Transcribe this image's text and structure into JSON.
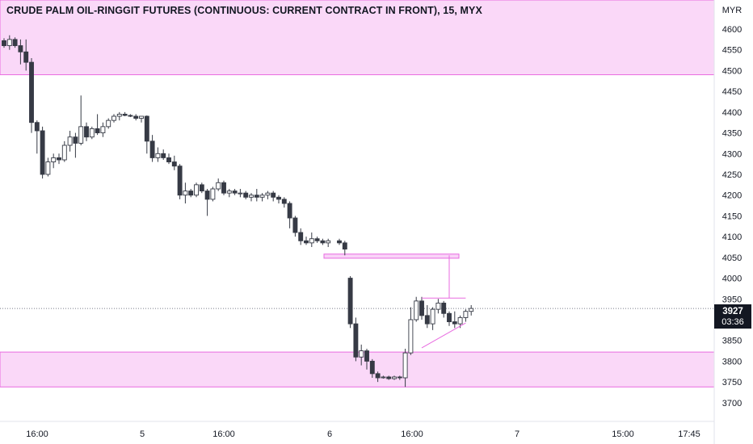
{
  "title": "CRUDE PALM OIL-RINGGIT FUTURES (CONTINUOUS: CURRENT CONTRACT IN FRONT), 15, MYX",
  "current_price": {
    "price": "3927",
    "countdown": "03:36"
  },
  "colors": {
    "up": "#ffffff",
    "down": "#363a45",
    "wick": "#363a45",
    "zone": "#f5b8f2",
    "line": "#e86be0",
    "grid": "#f0f3fa"
  },
  "chart_data": {
    "type": "candlestick",
    "y_axis_unit": "MYR",
    "ylim": [
      3655,
      4670
    ],
    "y_ticks": [
      3700,
      3750,
      3800,
      3850,
      3900,
      3950,
      4000,
      4050,
      4100,
      4150,
      4200,
      4250,
      4300,
      4350,
      4400,
      4450,
      4500,
      4550,
      4600
    ],
    "x_ticks": [
      "16:00",
      "5",
      "16:00",
      "6",
      "16:00",
      "7",
      "15:00",
      "17:45"
    ],
    "current_price": 3927,
    "zones": [
      {
        "name": "resistance-zone",
        "from": 4490,
        "to": 4670,
        "extends_right": true
      },
      {
        "name": "small-zone",
        "from": 4048,
        "to": 4058
      },
      {
        "name": "support-zone",
        "from": 3738,
        "to": 3822,
        "extends_right": true
      }
    ],
    "candles": [
      [
        4572,
        4578,
        4555,
        4560
      ],
      [
        4560,
        4585,
        4550,
        4575
      ],
      [
        4575,
        4580,
        4555,
        4560
      ],
      [
        4560,
        4575,
        4515,
        4545
      ],
      [
        4545,
        4575,
        4500,
        4520
      ],
      [
        4520,
        4530,
        4350,
        4375
      ],
      [
        4375,
        4380,
        4300,
        4355
      ],
      [
        4355,
        4365,
        4240,
        4250
      ],
      [
        4250,
        4290,
        4245,
        4280
      ],
      [
        4280,
        4300,
        4265,
        4290
      ],
      [
        4290,
        4300,
        4275,
        4285
      ],
      [
        4285,
        4330,
        4280,
        4320
      ],
      [
        4320,
        4355,
        4305,
        4340
      ],
      [
        4340,
        4350,
        4290,
        4325
      ],
      [
        4325,
        4440,
        4320,
        4365
      ],
      [
        4365,
        4375,
        4330,
        4340
      ],
      [
        4340,
        4365,
        4335,
        4360
      ],
      [
        4360,
        4395,
        4345,
        4350
      ],
      [
        4350,
        4375,
        4340,
        4365
      ],
      [
        4365,
        4385,
        4360,
        4380
      ],
      [
        4380,
        4395,
        4375,
        4390
      ],
      [
        4390,
        4400,
        4380,
        4395
      ],
      [
        4395,
        4400,
        4390,
        4392
      ],
      [
        4392,
        4395,
        4388,
        4390
      ],
      [
        4390,
        4395,
        4380,
        4385
      ],
      [
        4385,
        4390,
        4375,
        4390
      ],
      [
        4390,
        4392,
        4300,
        4330
      ],
      [
        4330,
        4345,
        4280,
        4290
      ],
      [
        4290,
        4315,
        4280,
        4300
      ],
      [
        4300,
        4310,
        4285,
        4290
      ],
      [
        4290,
        4300,
        4275,
        4280
      ],
      [
        4280,
        4295,
        4260,
        4270
      ],
      [
        4270,
        4275,
        4190,
        4200
      ],
      [
        4200,
        4230,
        4180,
        4210
      ],
      [
        4210,
        4215,
        4195,
        4200
      ],
      [
        4200,
        4230,
        4195,
        4225
      ],
      [
        4225,
        4230,
        4205,
        4210
      ],
      [
        4210,
        4215,
        4150,
        4190
      ],
      [
        4190,
        4220,
        4185,
        4215
      ],
      [
        4215,
        4240,
        4210,
        4230
      ],
      [
        4230,
        4235,
        4200,
        4205
      ],
      [
        4205,
        4215,
        4195,
        4210
      ],
      [
        4210,
        4215,
        4200,
        4205
      ],
      [
        4205,
        4215,
        4195,
        4205
      ],
      [
        4205,
        4210,
        4190,
        4195
      ],
      [
        4195,
        4205,
        4185,
        4200
      ],
      [
        4200,
        4215,
        4185,
        4195
      ],
      [
        4195,
        4205,
        4185,
        4200
      ],
      [
        4200,
        4210,
        4190,
        4205
      ],
      [
        4205,
        4210,
        4185,
        4195
      ],
      [
        4195,
        4200,
        4180,
        4190
      ],
      [
        4190,
        4195,
        4170,
        4180
      ],
      [
        4180,
        4185,
        4120,
        4145
      ],
      [
        4145,
        4150,
        4100,
        4110
      ],
      [
        4110,
        4120,
        4080,
        4090
      ],
      [
        4090,
        4100,
        4080,
        4085
      ],
      [
        4085,
        4110,
        4075,
        4095
      ],
      [
        4095,
        4100,
        4085,
        4090
      ],
      [
        4090,
        4095,
        4080,
        4085
      ],
      [
        4085,
        4095,
        4075,
        4090
      ],
      [
        4090,
        4095,
        4080,
        4085
      ],
      [
        4085,
        4090,
        4055,
        4070
      ],
      [
        4000,
        4005,
        3880,
        3890
      ],
      [
        3890,
        3905,
        3800,
        3810
      ],
      [
        3810,
        3840,
        3790,
        3825
      ],
      [
        3825,
        3830,
        3780,
        3800
      ],
      [
        3800,
        3805,
        3760,
        3770
      ],
      [
        3770,
        3775,
        3750,
        3760
      ],
      [
        3760,
        3765,
        3758,
        3762
      ],
      [
        3762,
        3765,
        3755,
        3758
      ],
      [
        3758,
        3765,
        3755,
        3762
      ],
      [
        3762,
        3765,
        3755,
        3760
      ],
      [
        3760,
        3830,
        3738,
        3820
      ],
      [
        3820,
        3930,
        3815,
        3900
      ],
      [
        3900,
        3955,
        3895,
        3945
      ],
      [
        3945,
        3955,
        3900,
        3910
      ],
      [
        3910,
        3935,
        3880,
        3890
      ],
      [
        3890,
        3930,
        3875,
        3925
      ],
      [
        3925,
        3950,
        3915,
        3940
      ],
      [
        3940,
        3945,
        3905,
        3915
      ],
      [
        3915,
        3920,
        3885,
        3895
      ],
      [
        3895,
        3920,
        3880,
        3890
      ],
      [
        3890,
        3910,
        3880,
        3905
      ],
      [
        3905,
        3925,
        3895,
        3920
      ],
      [
        3920,
        3935,
        3910,
        3927
      ]
    ],
    "trendlines": [
      {
        "name": "triangle-top",
        "points": [
          [
            75,
            3952
          ],
          [
            83,
            3952
          ]
        ]
      },
      {
        "name": "triangle-bottom",
        "points": [
          [
            75,
            3832
          ],
          [
            83,
            3892
          ]
        ]
      },
      {
        "name": "target-line",
        "points": [
          [
            80,
            4055
          ],
          [
            80,
            3952
          ]
        ]
      }
    ]
  }
}
